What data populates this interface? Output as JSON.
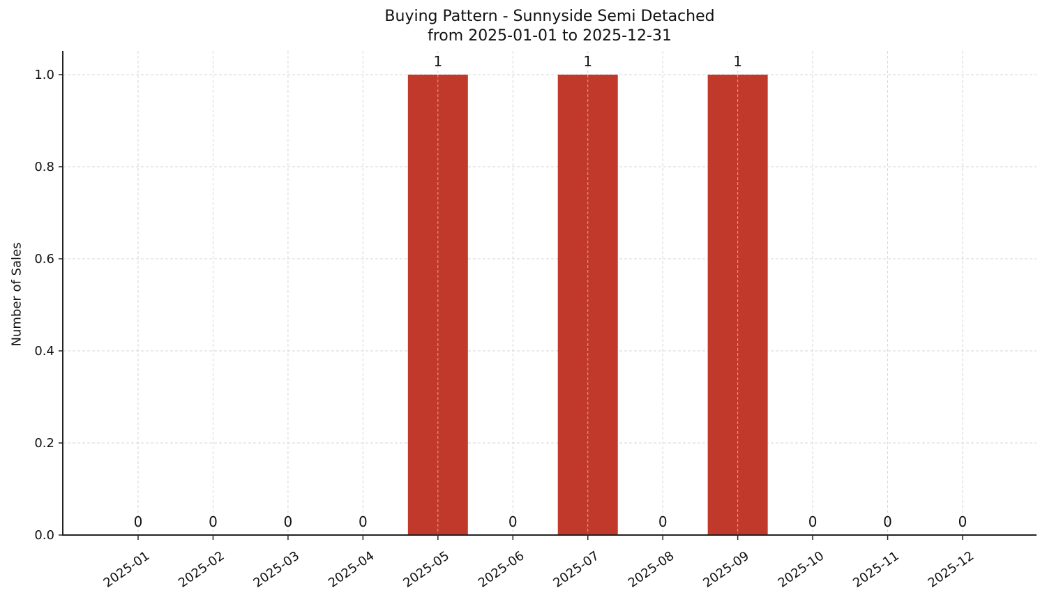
{
  "chart_data": {
    "type": "bar",
    "title": "Buying Pattern - Sunnyside Semi Detached",
    "subtitle": "from 2025-01-01 to 2025-12-31",
    "xlabel": "",
    "ylabel": "Number of Sales",
    "categories": [
      "2025-01",
      "2025-02",
      "2025-03",
      "2025-04",
      "2025-05",
      "2025-06",
      "2025-07",
      "2025-08",
      "2025-09",
      "2025-10",
      "2025-11",
      "2025-12"
    ],
    "values": [
      0,
      0,
      0,
      0,
      1,
      0,
      1,
      0,
      1,
      0,
      0,
      0
    ],
    "data_labels": [
      "0",
      "0",
      "0",
      "0",
      "1",
      "0",
      "1",
      "0",
      "1",
      "0",
      "0",
      "0"
    ],
    "ylim": [
      0,
      1.05
    ],
    "yticks": [
      "0.0",
      "0.2",
      "0.4",
      "0.6",
      "0.8",
      "1.0"
    ],
    "grid": true,
    "grid_style": "dashed",
    "legend": null,
    "bar_color": "#c0392b",
    "xtick_rotation": 35
  }
}
